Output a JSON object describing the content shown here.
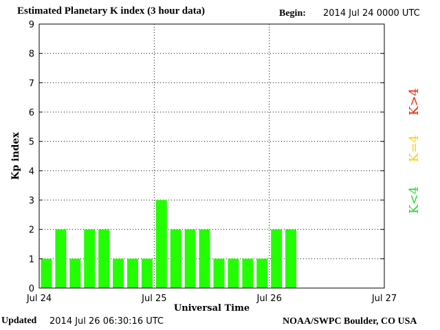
{
  "header": {
    "title": "Estimated Planetary K index (3 hour data)",
    "begin_label": "Begin:",
    "begin_value": "2014 Jul 24 0000 UTC"
  },
  "footer": {
    "updated_label": "Updated",
    "updated_value": "2014 Jul 26 06:30:16 UTC",
    "source": "NOAA/SWPC Boulder, CO USA"
  },
  "legend": {
    "items": [
      {
        "label": "K>4",
        "color": "#ff2000"
      },
      {
        "label": "K=4",
        "color": "#ffd000"
      },
      {
        "label": "K<4",
        "color": "#22dd22"
      }
    ]
  },
  "chart_data": {
    "type": "bar",
    "xlabel": "Universal Time",
    "ylabel": "Kp index",
    "ylim": [
      0,
      9
    ],
    "yticks": [
      0,
      1,
      2,
      3,
      4,
      5,
      6,
      7,
      8,
      9
    ],
    "xticks": [
      "Jul 24",
      "Jul 25",
      "Jul 26",
      "Jul 27"
    ],
    "bars_per_day": 8,
    "series": [
      {
        "values": [
          1,
          2,
          1,
          2,
          2,
          1,
          1,
          1,
          3,
          2,
          2,
          2,
          1,
          1,
          1,
          1,
          2,
          2
        ]
      }
    ],
    "bar_color": "#22ff00",
    "grid": "dotted"
  }
}
